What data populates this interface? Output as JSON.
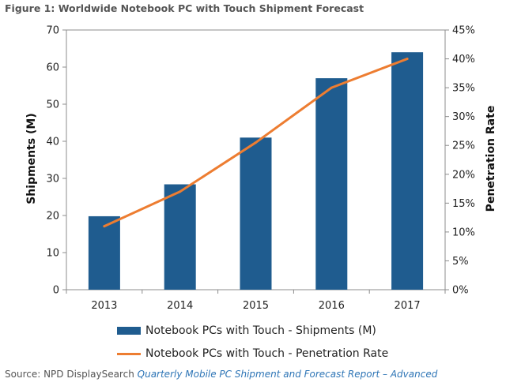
{
  "title": "Figure 1: Worldwide Notebook PC with Touch Shipment Forecast",
  "source": {
    "prefix": "Source: NPD DisplaySearch",
    "report": "Quarterly Mobile PC Shipment and Forecast Report – Advanced"
  },
  "chart_data": {
    "type": "bar",
    "title": "Worldwide Notebook PC with Touch Shipment Forecast",
    "categories": [
      "2013",
      "2014",
      "2015",
      "2016",
      "2017"
    ],
    "ylabel": "Shipments (M)",
    "y2label": "Penetration Rate",
    "ylim": [
      0,
      70
    ],
    "y2lim": [
      0,
      45
    ],
    "yticks": [
      "0",
      "10",
      "20",
      "30",
      "40",
      "50",
      "60",
      "70"
    ],
    "y2ticks": [
      "0%",
      "5%",
      "10%",
      "15%",
      "20%",
      "25%",
      "30%",
      "35%",
      "40%",
      "45%"
    ],
    "grid": false,
    "legend": "bottom",
    "series": [
      {
        "name": "Notebook PCs with Touch - Shipments (M)",
        "type": "bar",
        "axis": "left",
        "color": "#1f5c8f",
        "values": [
          19.8,
          28.4,
          41,
          57,
          64
        ]
      },
      {
        "name": "Notebook PCs with Touch - Penetration Rate",
        "type": "line",
        "axis": "right",
        "unit": "%",
        "color": "#ed7d31",
        "values": [
          11,
          17,
          25.5,
          35,
          40
        ]
      }
    ]
  }
}
